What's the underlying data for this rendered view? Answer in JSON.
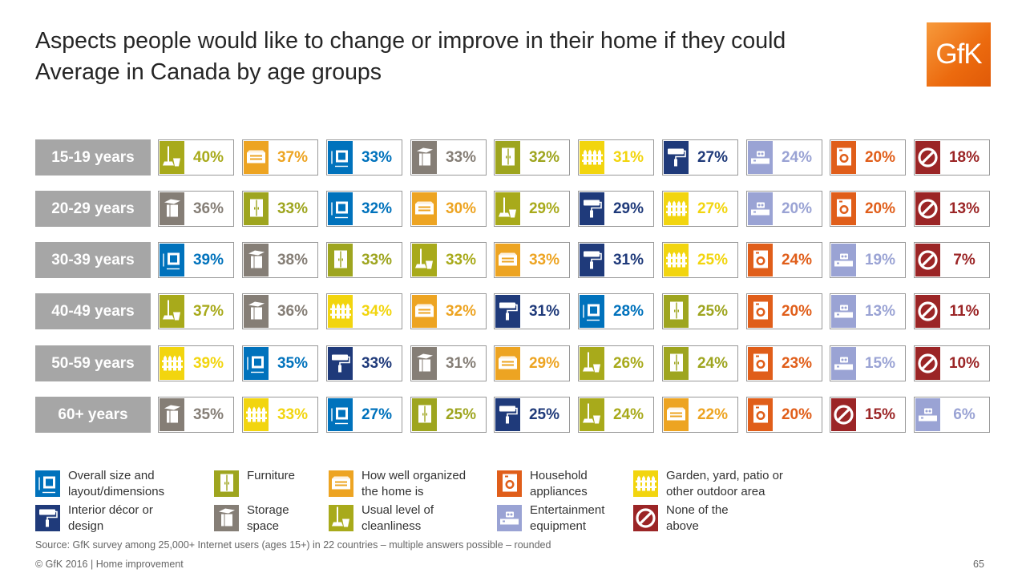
{
  "title_line1": "Aspects people would like to change or improve in their home if they could",
  "title_line2": "Average in Canada by age groups",
  "logo_text": "GfK",
  "source": "Source: GfK survey among 25,000+ Internet users (ages 15+) in 22 countries – multiple answers possible – rounded",
  "footer": "© GfK 2016 | Home improvement",
  "page_number": "65",
  "categories": {
    "size": {
      "legend": "Overall size and layout/dimensions",
      "color": "#0072bc",
      "icon": "size-layout-icon"
    },
    "furniture": {
      "legend": "Furniture",
      "color": "#9ea51f",
      "icon": "wardrobe-icon"
    },
    "organized": {
      "legend": "How well organized the home is",
      "color": "#eda422",
      "icon": "drawer-icon"
    },
    "appliances": {
      "legend": "Household appliances",
      "color": "#e05e1a",
      "icon": "washing-machine-icon"
    },
    "garden": {
      "legend": "Garden, yard, patio or other outdoor area",
      "color": "#f2d50f",
      "icon": "fence-icon"
    },
    "decor": {
      "legend": "Interior décor or design",
      "color": "#1f3a7a",
      "icon": "paint-roller-icon"
    },
    "storage": {
      "legend": "Storage space",
      "color": "#857e76",
      "icon": "storage-box-icon"
    },
    "cleanliness": {
      "legend": "Usual level of cleanliness",
      "color": "#a8aa1b",
      "icon": "mop-bucket-icon"
    },
    "entertainment": {
      "legend": "Entertainment equipment",
      "color": "#9aa3d4",
      "icon": "tv-equipment-icon"
    },
    "none": {
      "legend": "None of the above",
      "color": "#9b2526",
      "icon": "no-sign-icon"
    }
  },
  "chart_data": {
    "type": "table",
    "title": "Aspects people would like to change or improve in their home if they could",
    "subtitle": "Average in Canada by age groups",
    "rows": [
      {
        "label": "15-19 years",
        "values": [
          [
            "cleanliness",
            40
          ],
          [
            "organized",
            37
          ],
          [
            "size",
            33
          ],
          [
            "storage",
            33
          ],
          [
            "furniture",
            32
          ],
          [
            "garden",
            31
          ],
          [
            "decor",
            27
          ],
          [
            "entertainment",
            24
          ],
          [
            "appliances",
            20
          ],
          [
            "none",
            18
          ]
        ]
      },
      {
        "label": "20-29 years",
        "values": [
          [
            "storage",
            36
          ],
          [
            "furniture",
            33
          ],
          [
            "size",
            32
          ],
          [
            "organized",
            30
          ],
          [
            "cleanliness",
            29
          ],
          [
            "decor",
            29
          ],
          [
            "garden",
            27
          ],
          [
            "entertainment",
            20
          ],
          [
            "appliances",
            20
          ],
          [
            "none",
            13
          ]
        ]
      },
      {
        "label": "30-39 years",
        "values": [
          [
            "size",
            39
          ],
          [
            "storage",
            38
          ],
          [
            "furniture",
            33
          ],
          [
            "cleanliness",
            33
          ],
          [
            "organized",
            33
          ],
          [
            "decor",
            31
          ],
          [
            "garden",
            25
          ],
          [
            "appliances",
            24
          ],
          [
            "entertainment",
            19
          ],
          [
            "none",
            7
          ]
        ]
      },
      {
        "label": "40-49 years",
        "values": [
          [
            "cleanliness",
            37
          ],
          [
            "storage",
            36
          ],
          [
            "garden",
            34
          ],
          [
            "organized",
            32
          ],
          [
            "decor",
            31
          ],
          [
            "size",
            28
          ],
          [
            "furniture",
            25
          ],
          [
            "appliances",
            20
          ],
          [
            "entertainment",
            13
          ],
          [
            "none",
            11
          ]
        ]
      },
      {
        "label": "50-59 years",
        "values": [
          [
            "garden",
            39
          ],
          [
            "size",
            35
          ],
          [
            "decor",
            33
          ],
          [
            "storage",
            31
          ],
          [
            "organized",
            29
          ],
          [
            "cleanliness",
            26
          ],
          [
            "furniture",
            24
          ],
          [
            "appliances",
            23
          ],
          [
            "entertainment",
            15
          ],
          [
            "none",
            10
          ]
        ]
      },
      {
        "label": "60+ years",
        "values": [
          [
            "storage",
            35
          ],
          [
            "garden",
            33
          ],
          [
            "size",
            27
          ],
          [
            "furniture",
            25
          ],
          [
            "decor",
            25
          ],
          [
            "cleanliness",
            24
          ],
          [
            "organized",
            22
          ],
          [
            "appliances",
            20
          ],
          [
            "none",
            15
          ],
          [
            "entertainment",
            6
          ]
        ]
      }
    ]
  },
  "legend_order": [
    [
      "size",
      "furniture",
      "organized",
      "appliances",
      "garden"
    ],
    [
      "decor",
      "storage",
      "cleanliness",
      "entertainment",
      "none"
    ]
  ]
}
